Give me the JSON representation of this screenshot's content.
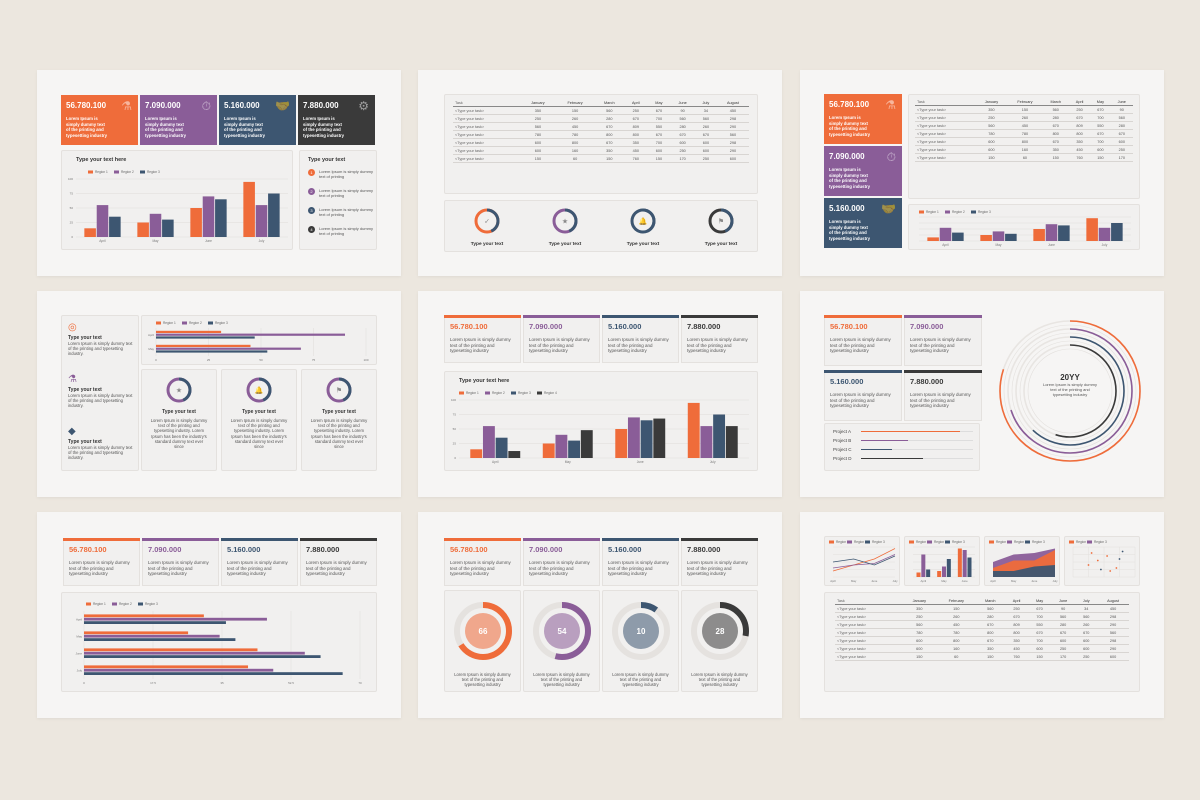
{
  "colors": {
    "orange": "#ef6c3a",
    "purple": "#8a5d98",
    "navy": "#3d5671",
    "dark": "#3a3a3a",
    "grid": "#e0ddda"
  },
  "kpis": [
    {
      "value": "56.780.100",
      "desc": "Lorem Ipsum is simply dummy text of the printing and typesetting industry",
      "icon": "flask-icon",
      "glyph": "⚗"
    },
    {
      "value": "7.090.000",
      "desc": "Lorem Ipsum is simply dummy text of the printing and typesetting industry",
      "icon": "stopwatch-icon",
      "glyph": "⏱"
    },
    {
      "value": "5.160.000",
      "desc": "Lorem Ipsum is simply dummy text of the printing and typesetting industry",
      "icon": "handshake-icon",
      "glyph": "🤝"
    },
    {
      "value": "7.880.000",
      "desc": "Lorem Ipsum is simply dummy text of the printing and typesetting industry",
      "icon": "gears-icon",
      "glyph": "⚙"
    }
  ],
  "stats": [
    {
      "value": "56.780.100",
      "desc": "Lorem Ipsum is simply dummy text of the printing and typesetting industry"
    },
    {
      "value": "7.090.000",
      "desc": "Lorem Ipsum is simply dummy text of the printing and typesetting industry"
    },
    {
      "value": "5.160.000",
      "desc": "Lorem Ipsum is simply dummy text of the printing and typesetting industry"
    },
    {
      "value": "7.880.000",
      "desc": "Lorem Ipsum is simply dummy text of the printing and typesetting industry"
    }
  ],
  "slide1": {
    "chart_title": "Type your text here",
    "list_title": "Type your text",
    "list": [
      "Lorem Ipsum is simply dummy text of printing",
      "Lorem Ipsum is simply dummy text of printing",
      "Lorem Ipsum is simply dummy text of printing",
      "Lorem Ipsum is simply dummy text of printing"
    ],
    "nums": [
      "1",
      "2",
      "3",
      "4"
    ]
  },
  "table": {
    "headers": [
      "Task",
      "January",
      "February",
      "March",
      "April",
      "May",
      "June",
      "July",
      "August"
    ],
    "rows": [
      [
        "<Type your task>",
        "350",
        "150",
        "560",
        "250",
        "670",
        "90",
        "34",
        "450"
      ],
      [
        "<Type your task>",
        "250",
        "260",
        "280",
        "670",
        "700",
        "560",
        "560",
        "298"
      ],
      [
        "<Type your task>",
        "560",
        "450",
        "670",
        "809",
        "550",
        "280",
        "260",
        "290"
      ],
      [
        "<Type your task>",
        "780",
        "780",
        "800",
        "800",
        "670",
        "670",
        "670",
        "560"
      ],
      [
        "<Type your task>",
        "600",
        "800",
        "670",
        "350",
        "700",
        "600",
        "600",
        "298"
      ],
      [
        "<Type your task>",
        "600",
        "160",
        "350",
        "450",
        "600",
        "250",
        "600",
        "290"
      ],
      [
        "<Type your task>",
        "150",
        "60",
        "150",
        "760",
        "150",
        "170",
        "250",
        "600"
      ]
    ]
  },
  "slide2": {
    "label": "Type your text",
    "icons": [
      "check-icon",
      "star-icon",
      "bell-icon",
      "flag-icon"
    ],
    "glyphs": [
      "✓",
      "★",
      "🔔",
      "⚑"
    ]
  },
  "slide4": {
    "items": [
      {
        "title": "Type your text",
        "desc": "Lorem Ipsum is simply dummy text of the printing and typesetting industry.",
        "icon": "target-icon",
        "glyph": "◎"
      },
      {
        "title": "Type your text",
        "desc": "Lorem Ipsum is simply dummy text of the printing and typesetting industry.",
        "icon": "flask-icon",
        "glyph": "⚗"
      },
      {
        "title": "Type your text",
        "desc": "Lorem Ipsum is simply dummy text of the printing and typesetting industry.",
        "icon": "diamond-icon",
        "glyph": "◆"
      }
    ],
    "cards": [
      {
        "title": "Type your text",
        "desc": "Lorem Ipsum is simply dummy text of the printing and typesetting industry. Lorem Ipsum has been the industry's standard dummy text ever since",
        "glyph": "★"
      },
      {
        "title": "Type your text",
        "desc": "Lorem Ipsum is simply dummy text of the printing and typesetting industry. Lorem Ipsum has been the industry's standard dummy text ever since",
        "glyph": "🔔"
      },
      {
        "title": "Type your text",
        "desc": "Lorem Ipsum is simply dummy text of the printing and typesetting industry. Lorem Ipsum has been the industry's standard dummy text ever since",
        "glyph": "⚑"
      }
    ]
  },
  "slide5": {
    "chart_title": "Type your text here"
  },
  "slide6": {
    "center_title": "20YY",
    "center_desc": "Lorem Ipsum is simply dummy text of the printing and typesetting industry",
    "projects": [
      {
        "name": "Project A",
        "pct": 0.88
      },
      {
        "name": "Project B",
        "pct": 0.42
      },
      {
        "name": "Project C",
        "pct": 0.28
      },
      {
        "name": "Project D",
        "pct": 0.55
      }
    ]
  },
  "slide8": {
    "donuts": [
      {
        "value": "66"
      },
      {
        "value": "54"
      },
      {
        "value": "10"
      },
      {
        "value": "28"
      }
    ],
    "desc": "Lorem Ipsum is simply dummy text of the printing and typesetting industry"
  },
  "chart_data": [
    {
      "type": "bar",
      "id": "s1",
      "categories": [
        "April",
        "May",
        "June",
        "July"
      ],
      "series": [
        {
          "name": "Region 1",
          "values": [
            15,
            25,
            50,
            95
          ]
        },
        {
          "name": "Region 2",
          "values": [
            55,
            40,
            70,
            55
          ]
        },
        {
          "name": "Region 3",
          "values": [
            35,
            30,
            65,
            75
          ]
        }
      ],
      "ylim": [
        0,
        100
      ],
      "yticks": [
        "0",
        "25",
        "50",
        "75",
        "100"
      ]
    },
    {
      "type": "bar",
      "id": "s3",
      "categories": [
        "April",
        "May",
        "June",
        "July"
      ],
      "series": [
        {
          "name": "Region 1",
          "values": [
            15,
            25,
            50,
            95
          ]
        },
        {
          "name": "Region 2",
          "values": [
            55,
            40,
            70,
            55
          ]
        },
        {
          "name": "Region 3",
          "values": [
            35,
            30,
            65,
            75
          ]
        }
      ],
      "ylim": [
        0,
        100
      ]
    },
    {
      "type": "bar",
      "id": "s4",
      "orientation": "horizontal",
      "categories": [
        "April",
        "May"
      ],
      "series": [
        {
          "name": "Region 1",
          "values": [
            31,
            45
          ]
        },
        {
          "name": "Region 2",
          "values": [
            90,
            69
          ]
        },
        {
          "name": "Region 3",
          "values": [
            47,
            53
          ]
        }
      ],
      "xlim": [
        0,
        100
      ],
      "xticks": [
        "0",
        "25",
        "50",
        "75",
        "100"
      ]
    },
    {
      "type": "bar",
      "id": "s5",
      "categories": [
        "April",
        "May",
        "June",
        "July"
      ],
      "series": [
        {
          "name": "Region 1",
          "values": [
            15,
            25,
            50,
            95
          ]
        },
        {
          "name": "Region 2",
          "values": [
            55,
            40,
            70,
            55
          ]
        },
        {
          "name": "Region 3",
          "values": [
            35,
            30,
            65,
            75
          ]
        },
        {
          "name": "Region 4",
          "values": [
            12,
            48,
            68,
            55
          ]
        }
      ],
      "ylim": [
        0,
        100
      ],
      "yticks": [
        "0",
        "25",
        "50",
        "75",
        "100"
      ]
    },
    {
      "type": "bar",
      "id": "s7",
      "orientation": "horizontal",
      "categories": [
        "April",
        "May",
        "June",
        "July"
      ],
      "series": [
        {
          "name": "Region 1",
          "values": [
            38,
            33,
            55,
            52
          ]
        },
        {
          "name": "Region 2",
          "values": [
            58,
            43,
            70,
            60
          ]
        },
        {
          "name": "Region 3",
          "values": [
            45,
            48,
            75,
            82
          ]
        }
      ],
      "xlim": [
        0,
        87.5
      ],
      "xticks": [
        "0",
        "17.5",
        "35",
        "52.5",
        "70"
      ]
    },
    {
      "type": "line",
      "id": "s9a",
      "categories": [
        "April",
        "May",
        "June",
        "July"
      ],
      "series": [
        {
          "name": "Region 1",
          "values": [
            20,
            40,
            60,
            95
          ]
        },
        {
          "name": "Region 2",
          "values": [
            30,
            40,
            45,
            75
          ]
        },
        {
          "name": "Region 3",
          "values": [
            50,
            60,
            40,
            70
          ]
        }
      ],
      "ylim": [
        0,
        100
      ]
    },
    {
      "type": "bar",
      "id": "s9b",
      "categories": [
        "April",
        "May",
        "June"
      ],
      "series": [
        {
          "name": "Region 1",
          "values": [
            15,
            20,
            95
          ]
        },
        {
          "name": "Region 2",
          "values": [
            75,
            35,
            90
          ]
        },
        {
          "name": "Region 3",
          "values": [
            25,
            60,
            65
          ]
        }
      ],
      "ylim": [
        0,
        100
      ]
    },
    {
      "type": "area",
      "id": "s9c",
      "categories": [
        "April",
        "May",
        "June",
        "July"
      ],
      "series": [
        {
          "name": "Region 1",
          "values": [
            30,
            55,
            55,
            90
          ]
        },
        {
          "name": "Region 2",
          "values": [
            50,
            75,
            80,
            95
          ]
        },
        {
          "name": "Region 3",
          "values": [
            20,
            20,
            35,
            40
          ]
        }
      ],
      "ylim": [
        0,
        100
      ]
    },
    {
      "type": "scatter",
      "id": "s9d",
      "series": [
        {
          "name": "Region 2",
          "points": [
            [
              30,
              80
            ],
            [
              55,
              70
            ],
            [
              70,
              30
            ],
            [
              25,
              40
            ],
            [
              60,
              20
            ],
            [
              40,
              55
            ]
          ]
        },
        {
          "name": "Region 3",
          "points": [
            [
              80,
              85
            ],
            [
              45,
              25
            ],
            [
              75,
              60
            ]
          ]
        }
      ],
      "xlim": [
        0,
        100
      ],
      "ylim": [
        0,
        100
      ]
    }
  ]
}
